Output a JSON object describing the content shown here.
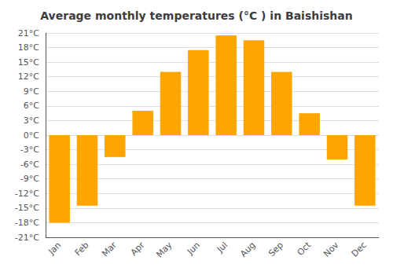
{
  "chart_data": {
    "type": "bar",
    "title": "Average monthly temperatures (°C ) in Baishishan",
    "categories": [
      "Jan",
      "Feb",
      "Mar",
      "Apr",
      "May",
      "Jun",
      "Jul",
      "Aug",
      "Sep",
      "Oct",
      "Nov",
      "Dec"
    ],
    "values": [
      -18,
      -14.5,
      -4.5,
      5,
      13,
      17.5,
      20.5,
      19.5,
      13,
      4.5,
      -5,
      -14.5
    ],
    "color": "#FFA500",
    "ylim": [
      -21,
      21
    ],
    "yticks": [
      {
        "value": -21,
        "label": "-21°C"
      },
      {
        "value": -18,
        "label": "-18°C"
      },
      {
        "value": -15,
        "label": "-15°C"
      },
      {
        "value": -12,
        "label": "-12°C"
      },
      {
        "value": -9,
        "label": "-9°C"
      },
      {
        "value": -6,
        "label": "-6°C"
      },
      {
        "value": -3,
        "label": "-3°C"
      },
      {
        "value": 0,
        "label": "0°C"
      },
      {
        "value": 3,
        "label": "3°C"
      },
      {
        "value": 6,
        "label": "6°C"
      },
      {
        "value": 9,
        "label": "9°C"
      },
      {
        "value": 12,
        "label": "12°C"
      },
      {
        "value": 15,
        "label": "15°C"
      },
      {
        "value": 18,
        "label": "18°C"
      },
      {
        "value": 21,
        "label": "21°C"
      }
    ],
    "grid": true
  }
}
